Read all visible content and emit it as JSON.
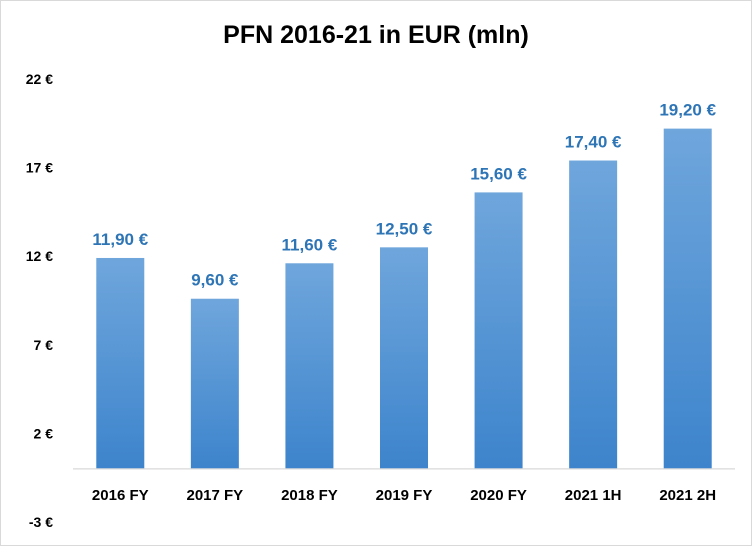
{
  "chart_data": {
    "type": "bar",
    "title": "PFN 2016-21 in EUR (mln)",
    "xlabel": "",
    "ylabel": "",
    "categories": [
      "2016 FY",
      "2017 FY",
      "2018 FY",
      "2019 FY",
      "2020 FY",
      "2021 1H",
      "2021 2H"
    ],
    "values": [
      11.9,
      9.6,
      11.6,
      12.5,
      15.6,
      17.4,
      19.2
    ],
    "data_labels": [
      "11,90 €",
      "9,60 €",
      "11,60 €",
      "12,50 €",
      "15,60 €",
      "17,40 €",
      "19,20 €"
    ],
    "ylim": [
      -3,
      22
    ],
    "yticks": [
      22,
      17,
      12,
      7,
      2,
      -3
    ],
    "ytick_labels": [
      "22 €",
      "17 €",
      "12 €",
      "7 €",
      "2 €",
      "-3 €"
    ],
    "grid": false,
    "legend": "none",
    "colors": {
      "bar_top": "#6fa6dc",
      "bar_bottom": "#3d84cc",
      "label": "#2e75b6",
      "axis": "#d9d9d9"
    }
  }
}
